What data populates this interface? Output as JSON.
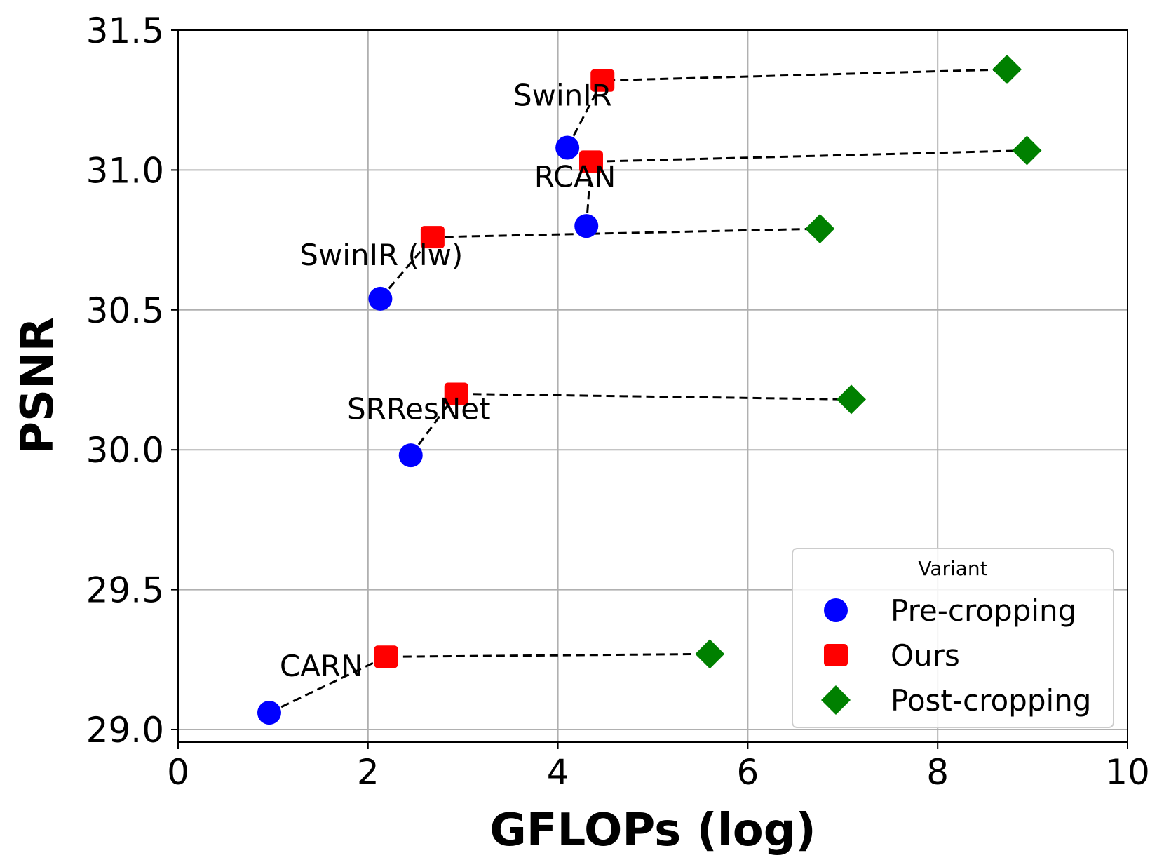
{
  "chart_data": {
    "type": "scatter",
    "xlabel": "GFLOPs (log)",
    "ylabel": "PSNR",
    "xlim": [
      0,
      10
    ],
    "ylim": [
      28.95,
      31.5
    ],
    "x_ticks": [
      0,
      2,
      4,
      6,
      8,
      10
    ],
    "x_tick_labels": [
      "0",
      "2",
      "4",
      "6",
      "8",
      "10"
    ],
    "y_ticks": [
      29.0,
      29.5,
      30.0,
      30.5,
      31.0,
      31.5
    ],
    "y_tick_labels": [
      "29.0",
      "29.5",
      "30.0",
      "30.5",
      "31.0",
      "31.5"
    ],
    "grid": true,
    "legend": {
      "title": "Variant",
      "position": "lower right",
      "entries": [
        {
          "label": "Pre-cropping",
          "color": "#0000ff",
          "marker": "circle"
        },
        {
          "label": "Ours",
          "color": "#ff0000",
          "marker": "square"
        },
        {
          "label": "Post-cropping",
          "color": "#008000",
          "marker": "diamond"
        }
      ]
    },
    "series": [
      {
        "name": "Pre-cropping",
        "color": "#0000ff",
        "marker": "circle",
        "points": [
          [
            4.1,
            31.08
          ],
          [
            4.3,
            30.8
          ],
          [
            2.13,
            30.54
          ],
          [
            2.45,
            29.98
          ],
          [
            0.96,
            29.06
          ]
        ]
      },
      {
        "name": "Ours",
        "color": "#ff0000",
        "marker": "square",
        "points": [
          [
            4.47,
            31.32
          ],
          [
            4.35,
            31.03
          ],
          [
            2.68,
            30.76
          ],
          [
            2.93,
            30.2
          ],
          [
            2.19,
            29.26
          ]
        ]
      },
      {
        "name": "Post-cropping",
        "color": "#008000",
        "marker": "diamond",
        "points": [
          [
            8.73,
            31.36
          ],
          [
            8.94,
            31.07
          ],
          [
            6.76,
            30.79
          ],
          [
            7.09,
            30.18
          ],
          [
            5.6,
            29.27
          ]
        ]
      }
    ],
    "models": [
      {
        "label": "SwinIR",
        "label_pos": [
          3.53,
          31.23
        ],
        "points": [
          [
            4.1,
            31.08
          ],
          [
            4.47,
            31.32
          ],
          [
            8.73,
            31.36
          ]
        ]
      },
      {
        "label": "RCAN",
        "label_pos": [
          3.75,
          30.94
        ],
        "points": [
          [
            4.3,
            30.8
          ],
          [
            4.35,
            31.03
          ],
          [
            8.94,
            31.07
          ]
        ]
      },
      {
        "label": "SwinIR (lw)",
        "label_pos": [
          1.28,
          30.66
        ],
        "points": [
          [
            2.13,
            30.54
          ],
          [
            2.68,
            30.76
          ],
          [
            6.76,
            30.79
          ]
        ]
      },
      {
        "label": "SRResNet",
        "label_pos": [
          1.78,
          30.11
        ],
        "points": [
          [
            2.45,
            29.98
          ],
          [
            2.93,
            30.2
          ],
          [
            7.09,
            30.18
          ]
        ]
      },
      {
        "label": "CARN",
        "label_pos": [
          1.07,
          29.19
        ],
        "points": [
          [
            0.96,
            29.06
          ],
          [
            2.19,
            29.26
          ],
          [
            5.6,
            29.27
          ]
        ]
      }
    ]
  }
}
